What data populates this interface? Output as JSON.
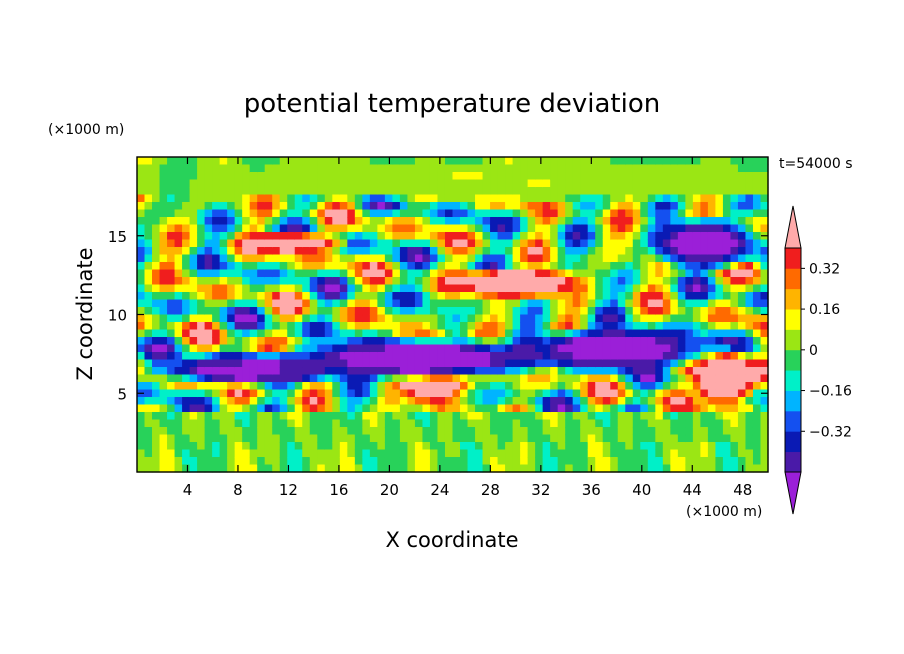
{
  "chart_data": {
    "type": "heatmap",
    "title": "potential temperature deviation",
    "xlabel": "X coordinate",
    "ylabel": "Z coordinate",
    "x_unit": "(×1000 m)",
    "y_unit": "(×1000 m)",
    "time_label": "t=54000 s",
    "xlim": [
      0,
      50
    ],
    "ylim": [
      0,
      20
    ],
    "x_ticks": [
      4,
      8,
      12,
      16,
      20,
      24,
      28,
      32,
      36,
      40,
      44,
      48
    ],
    "y_ticks": [
      5,
      10,
      15
    ],
    "colorbar": {
      "levels": [
        -0.48,
        -0.4,
        -0.32,
        -0.24,
        -0.16,
        -0.08,
        0,
        0.08,
        0.16,
        0.24,
        0.32,
        0.4,
        0.48
      ],
      "colors": [
        "#9b1fd8",
        "#4a1aa8",
        "#0a1ab4",
        "#1450f0",
        "#00b4ff",
        "#00f0c8",
        "#28d25a",
        "#9be614",
        "#ffff00",
        "#ffb400",
        "#ff6a00",
        "#f01e1e",
        "#ffaaaa"
      ],
      "labels": [
        "0.32",
        "0.16",
        "0",
        "−0.16",
        "−0.32"
      ],
      "label_values": [
        0.32,
        0.16,
        0,
        -0.16,
        -0.32
      ],
      "extend": "both"
    },
    "features": [
      {
        "x": 23.5,
        "z": 6.5,
        "rx": 2.8,
        "rz": 2.1,
        "value": 0.55
      },
      {
        "x": 46.5,
        "z": 6.0,
        "rx": 2.4,
        "rz": 1.6,
        "value": 0.55
      },
      {
        "x": 22.0,
        "z": 7.2,
        "rx": 10.0,
        "rz": 1.2,
        "value": -0.45
      },
      {
        "x": 9.0,
        "z": 6.5,
        "rx": 7.0,
        "rz": 0.9,
        "value": -0.45
      },
      {
        "x": 38.0,
        "z": 7.8,
        "rx": 7.0,
        "rz": 1.3,
        "value": -0.45
      },
      {
        "x": 30.0,
        "z": 12.0,
        "rx": 5.0,
        "rz": 0.9,
        "value": 0.45
      },
      {
        "x": 12.0,
        "z": 14.5,
        "rx": 4.0,
        "rz": 0.7,
        "value": 0.4
      },
      {
        "x": 45.0,
        "z": 14.5,
        "rx": 4.0,
        "rz": 1.5,
        "value": -0.45
      },
      {
        "x": 30.0,
        "z": 18.5,
        "rx": 25.0,
        "rz": 1.2,
        "value": 0.04
      }
    ]
  }
}
